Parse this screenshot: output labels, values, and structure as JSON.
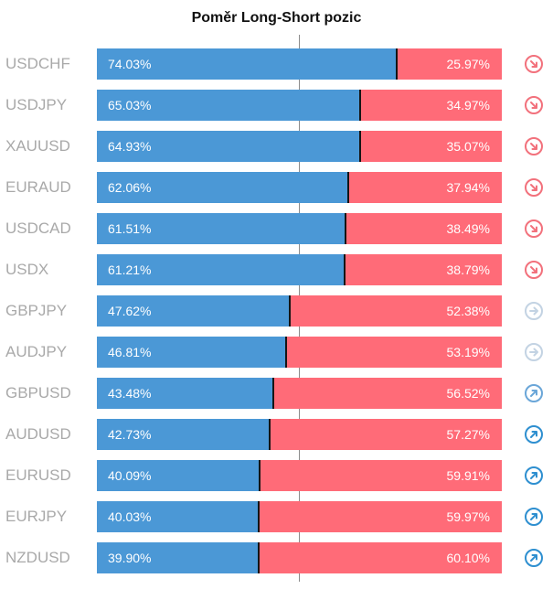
{
  "chart_data": {
    "type": "bar",
    "title": "Poměr Long-Short pozic",
    "categories": [
      "USDCHF",
      "USDJPY",
      "XAUUSD",
      "EURAUD",
      "USDCAD",
      "USDX",
      "GBPJPY",
      "AUDJPY",
      "GBPUSD",
      "AUDUSD",
      "EURUSD",
      "EURJPY",
      "NZDUSD"
    ],
    "series": [
      {
        "values": [
          74.03,
          65.03,
          64.93,
          62.06,
          61.51,
          61.21,
          47.62,
          46.81,
          43.48,
          42.73,
          40.09,
          40.03,
          39.9
        ]
      },
      {
        "values": [
          25.97,
          34.97,
          35.07,
          37.94,
          38.49,
          38.79,
          52.38,
          53.19,
          56.52,
          57.27,
          59.91,
          59.97,
          60.1
        ]
      }
    ],
    "xlim": [
      0,
      100
    ],
    "grid": false
  },
  "long_labels": [
    "74.03%",
    "65.03%",
    "64.93%",
    "62.06%",
    "61.51%",
    "61.21%",
    "47.62%",
    "46.81%",
    "43.48%",
    "42.73%",
    "40.09%",
    "40.03%",
    "39.90%"
  ],
  "short_labels": [
    "25.97%",
    "34.97%",
    "35.07%",
    "37.94%",
    "38.49%",
    "38.79%",
    "52.38%",
    "53.19%",
    "56.52%",
    "57.27%",
    "59.91%",
    "59.97%",
    "60.10%"
  ],
  "trend_icons": [
    "arrow-down-right-icon",
    "arrow-down-right-icon",
    "arrow-down-right-icon",
    "arrow-down-right-icon",
    "arrow-down-right-icon",
    "arrow-down-right-icon",
    "arrow-right-icon",
    "arrow-right-icon",
    "arrow-up-right-icon",
    "arrow-up-right-icon",
    "arrow-up-right-icon",
    "arrow-up-right-icon",
    "arrow-up-right-icon"
  ],
  "colors": {
    "long": "#4b98d6",
    "short": "#ff6b78",
    "down": "#f2717c",
    "neutral": "#c3d3e3",
    "up_light": "#6aa6d8",
    "up": "#2e8fd0"
  }
}
